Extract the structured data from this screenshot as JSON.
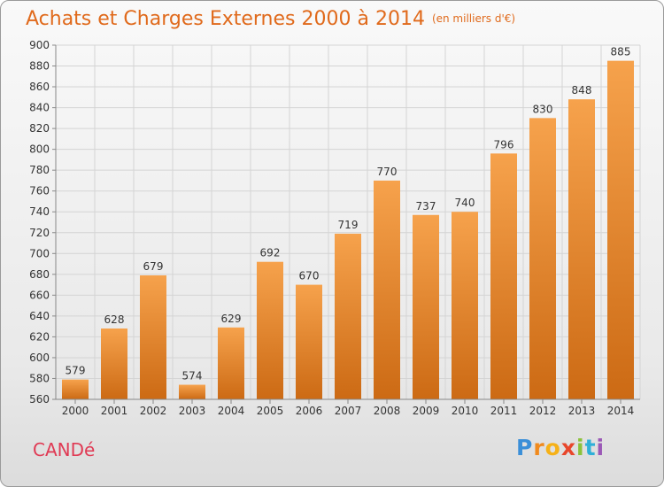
{
  "title": "Achats et Charges Externes 2000 à 2014",
  "subtitle": "(en milliers d'€)",
  "city": "CANDé",
  "logo": [
    "P",
    "r",
    "o",
    "x",
    "i",
    "t",
    "i"
  ],
  "colors": {
    "bar_top": "#f6a24c",
    "bar_bottom": "#cc6a14",
    "title": "#e06a1c",
    "city": "#e03a54"
  },
  "chart_data": {
    "type": "bar",
    "title": "Achats et Charges Externes 2000 à 2014",
    "subtitle": "(en milliers d'€)",
    "categories": [
      "2000",
      "2001",
      "2002",
      "2003",
      "2004",
      "2005",
      "2006",
      "2007",
      "2008",
      "2009",
      "2010",
      "2011",
      "2012",
      "2013",
      "2014"
    ],
    "values": [
      579,
      628,
      679,
      574,
      629,
      692,
      670,
      719,
      770,
      737,
      740,
      796,
      830,
      848,
      885
    ],
    "ylim": [
      560,
      900
    ],
    "yticks": [
      560,
      580,
      600,
      620,
      640,
      660,
      680,
      700,
      720,
      740,
      760,
      780,
      800,
      820,
      840,
      860,
      880,
      900
    ],
    "grid": true,
    "xlabel": "",
    "ylabel": ""
  }
}
